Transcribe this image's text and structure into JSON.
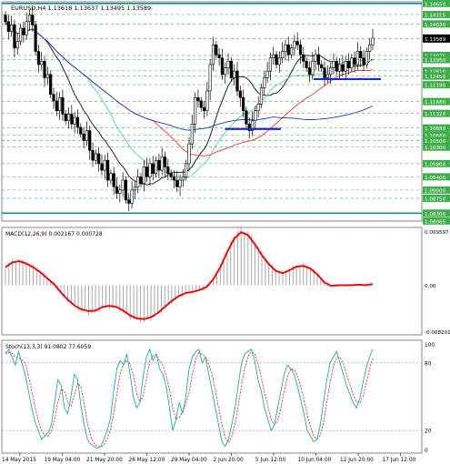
{
  "header": {
    "text": "EURUSD,H4  1.13618 1.13637 1.13495 1.13589"
  },
  "chart_data": [
    {
      "type": "candlestick",
      "symbol": "EURUSD",
      "timeframe": "H4",
      "ohlc_header": {
        "open": 1.13618,
        "high": 1.13637,
        "low": 1.13495,
        "close": 1.13589
      },
      "ylim": [
        1.0806,
        1.147
      ],
      "y_ticks": [
        "1.14650",
        "1.14315",
        "1.14030",
        "1.13589",
        "1.13075",
        "1.12950",
        "1.12610",
        "1.12450",
        "1.12190",
        "1.11680",
        "1.11320",
        "1.10880",
        "1.10660",
        "1.10500",
        "1.10300",
        "1.09800",
        "1.09400",
        "1.09000",
        "1.08750",
        "1.08300",
        "1.08065"
      ],
      "x_labels": [
        "14 May 2015",
        "19 May 04:00",
        "21 May 20:00",
        "26 May 12:00",
        "29 May 04:00",
        "2 Jun 20:00",
        "5 Jun 12:00",
        "10 Jun 04:00",
        "12 Jun 20:00",
        "17 Jun 12:00"
      ],
      "current_price": 1.13589,
      "resistance_level": 1.1465,
      "support_level": 1.083,
      "ma_fast_color": "#54d39a",
      "ma_slow_color": "#e03a2f",
      "ma_long_color": "#2236c8",
      "ma_short_color": "#111111",
      "marked_levels": [
        {
          "price": 1.1085,
          "from": "2 Jun 20:00",
          "to": "5 Jun 12:00",
          "color": "#1a2ad8"
        },
        {
          "price": 1.1236,
          "from": "12 Jun 04:00",
          "to": "17 Jun 04:00",
          "color": "#1a2ad8"
        }
      ],
      "close_series": [
        1.141,
        1.138,
        1.14,
        1.133,
        1.135,
        1.139,
        1.137,
        1.141,
        1.143,
        1.14,
        1.132,
        1.128,
        1.129,
        1.124,
        1.125,
        1.119,
        1.117,
        1.114,
        1.118,
        1.113,
        1.111,
        1.113,
        1.11,
        1.112,
        1.109,
        1.107,
        1.105,
        1.108,
        1.102,
        1.099,
        1.101,
        1.098,
        1.096,
        1.099,
        1.093,
        1.095,
        1.091,
        1.089,
        1.09,
        1.093,
        1.087,
        1.086,
        1.09,
        1.091,
        1.094,
        1.092,
        1.097,
        1.094,
        1.098,
        1.095,
        1.099,
        1.096,
        1.1,
        1.097,
        1.095,
        1.094,
        1.093,
        1.091,
        1.093,
        1.094,
        1.098,
        1.104,
        1.11,
        1.118,
        1.117,
        1.115,
        1.114,
        1.12,
        1.128,
        1.134,
        1.131,
        1.13,
        1.125,
        1.127,
        1.129,
        1.124,
        1.126,
        1.12,
        1.118,
        1.114,
        1.11,
        1.108,
        1.111,
        1.114,
        1.116,
        1.121,
        1.124,
        1.126,
        1.13,
        1.131,
        1.128,
        1.13,
        1.132,
        1.134,
        1.131,
        1.133,
        1.135,
        1.134,
        1.131,
        1.129,
        1.127,
        1.125,
        1.129,
        1.131,
        1.128,
        1.127,
        1.124,
        1.125,
        1.127,
        1.129,
        1.126,
        1.128,
        1.126,
        1.129,
        1.127,
        1.13,
        1.128,
        1.132,
        1.13,
        1.128,
        1.132,
        1.134,
        1.136
      ]
    },
    {
      "type": "line",
      "title": "MACD(12,26,9) 0.002167 0.000728",
      "macd": 0.002167,
      "signal": 0.000728,
      "ylim": [
        -0.00822,
        0.00959
      ],
      "y_ticks": [
        "0.009597",
        "0.00",
        "-0.008201"
      ],
      "histogram_color": "#a8a8a8",
      "signal_color": "#e01010",
      "signal_series": [
        0.003,
        0.0038,
        0.004,
        0.0036,
        0.003,
        0.0022,
        0.0012,
        0.0002,
        -0.0012,
        -0.0024,
        -0.0034,
        -0.004,
        -0.0043,
        -0.0042,
        -0.0036,
        -0.0034,
        -0.0036,
        -0.0042,
        -0.005,
        -0.0055,
        -0.0056,
        -0.0053,
        -0.0046,
        -0.0036,
        -0.0026,
        -0.0018,
        -0.0013,
        -0.0011,
        -0.0008,
        -0.0003,
        0.001,
        0.003,
        0.0055,
        0.0077,
        0.0088,
        0.0083,
        0.0068,
        0.005,
        0.0035,
        0.0024,
        0.002,
        0.0025,
        0.0031,
        0.0032,
        0.0028,
        0.0018,
        0.0005,
        -0.0001,
        0.0,
        0.0,
        0.0,
        0.0001,
        0.0,
        0.0002
      ]
    },
    {
      "type": "line",
      "title": "Stoch(13,3,3) 91.0802 77.6059",
      "main": 91.0802,
      "signal": 77.6059,
      "ylim": [
        0,
        100
      ],
      "y_ticks": [
        "100",
        "80",
        "20",
        "0"
      ],
      "main_color": "#27a6a6",
      "signal_color": "#e01010",
      "main_series": [
        88,
        92,
        85,
        78,
        90,
        80,
        70,
        55,
        40,
        28,
        20,
        12,
        15,
        18,
        25,
        45,
        65,
        60,
        40,
        35,
        50,
        70,
        65,
        42,
        25,
        12,
        8,
        6,
        4,
        6,
        12,
        20,
        30,
        55,
        75,
        82,
        78,
        88,
        70,
        50,
        40,
        45,
        68,
        85,
        92,
        82,
        88,
        75,
        70,
        60,
        40,
        20,
        30,
        45,
        35,
        50,
        75,
        85,
        90,
        92,
        80,
        85,
        70,
        55,
        40,
        25,
        10,
        6,
        12,
        25,
        40,
        60,
        80,
        88,
        90,
        92,
        82,
        65,
        55,
        40,
        30,
        20,
        25,
        40,
        55,
        70,
        78,
        75,
        70,
        60,
        48,
        35,
        20,
        15,
        10,
        12,
        25,
        45,
        65,
        80,
        85,
        90,
        80,
        70,
        60,
        52,
        45,
        40,
        48,
        62,
        75,
        85,
        92
      ]
    }
  ]
}
